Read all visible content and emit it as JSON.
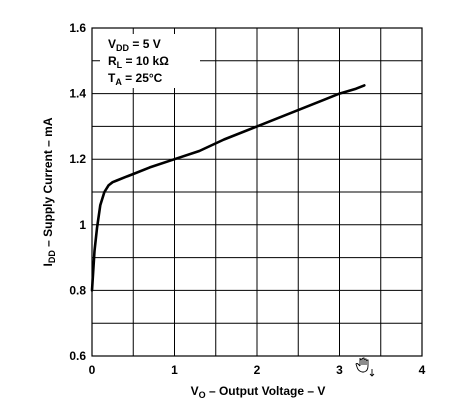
{
  "chart_data": {
    "type": "line",
    "xlabel": {
      "main": "V",
      "sub": "O",
      "rest": " – Output Voltage – V"
    },
    "ylabel": {
      "main": "I",
      "sub": "DD",
      "rest": " – Supply Current – mA"
    },
    "xlim": [
      0,
      4
    ],
    "ylim": [
      0.6,
      1.6
    ],
    "xticks": [
      0,
      1,
      2,
      3,
      4
    ],
    "yticks": [
      0.6,
      0.8,
      1.0,
      1.2,
      1.4,
      1.6
    ],
    "xtick_labels": [
      "0",
      "1",
      "2",
      "3",
      "4"
    ],
    "ytick_labels": [
      "0.6",
      "0.8",
      "1",
      "1.2",
      "1.4",
      "1.6"
    ],
    "x_minor_step": 0.5,
    "y_minor_step": 0.1,
    "grid": true,
    "annotations": [
      {
        "main": "V",
        "sub": "DD",
        "rest": " = 5 V"
      },
      {
        "main": "R",
        "sub": "L",
        "rest": " = 10 kΩ"
      },
      {
        "main": "T",
        "sub": "A",
        "rest": " = 25°C"
      }
    ],
    "series": [
      {
        "x": [
          0.0,
          0.03,
          0.06,
          0.1,
          0.15,
          0.2,
          0.25,
          0.3,
          0.4,
          0.5,
          0.7,
          1.0,
          1.3,
          1.6,
          2.0,
          2.4,
          2.8,
          3.0,
          3.2,
          3.3
        ],
        "y": [
          0.8,
          0.92,
          0.99,
          1.06,
          1.1,
          1.12,
          1.13,
          1.135,
          1.145,
          1.155,
          1.175,
          1.2,
          1.225,
          1.26,
          1.3,
          1.34,
          1.38,
          1.4,
          1.415,
          1.425
        ]
      }
    ]
  }
}
